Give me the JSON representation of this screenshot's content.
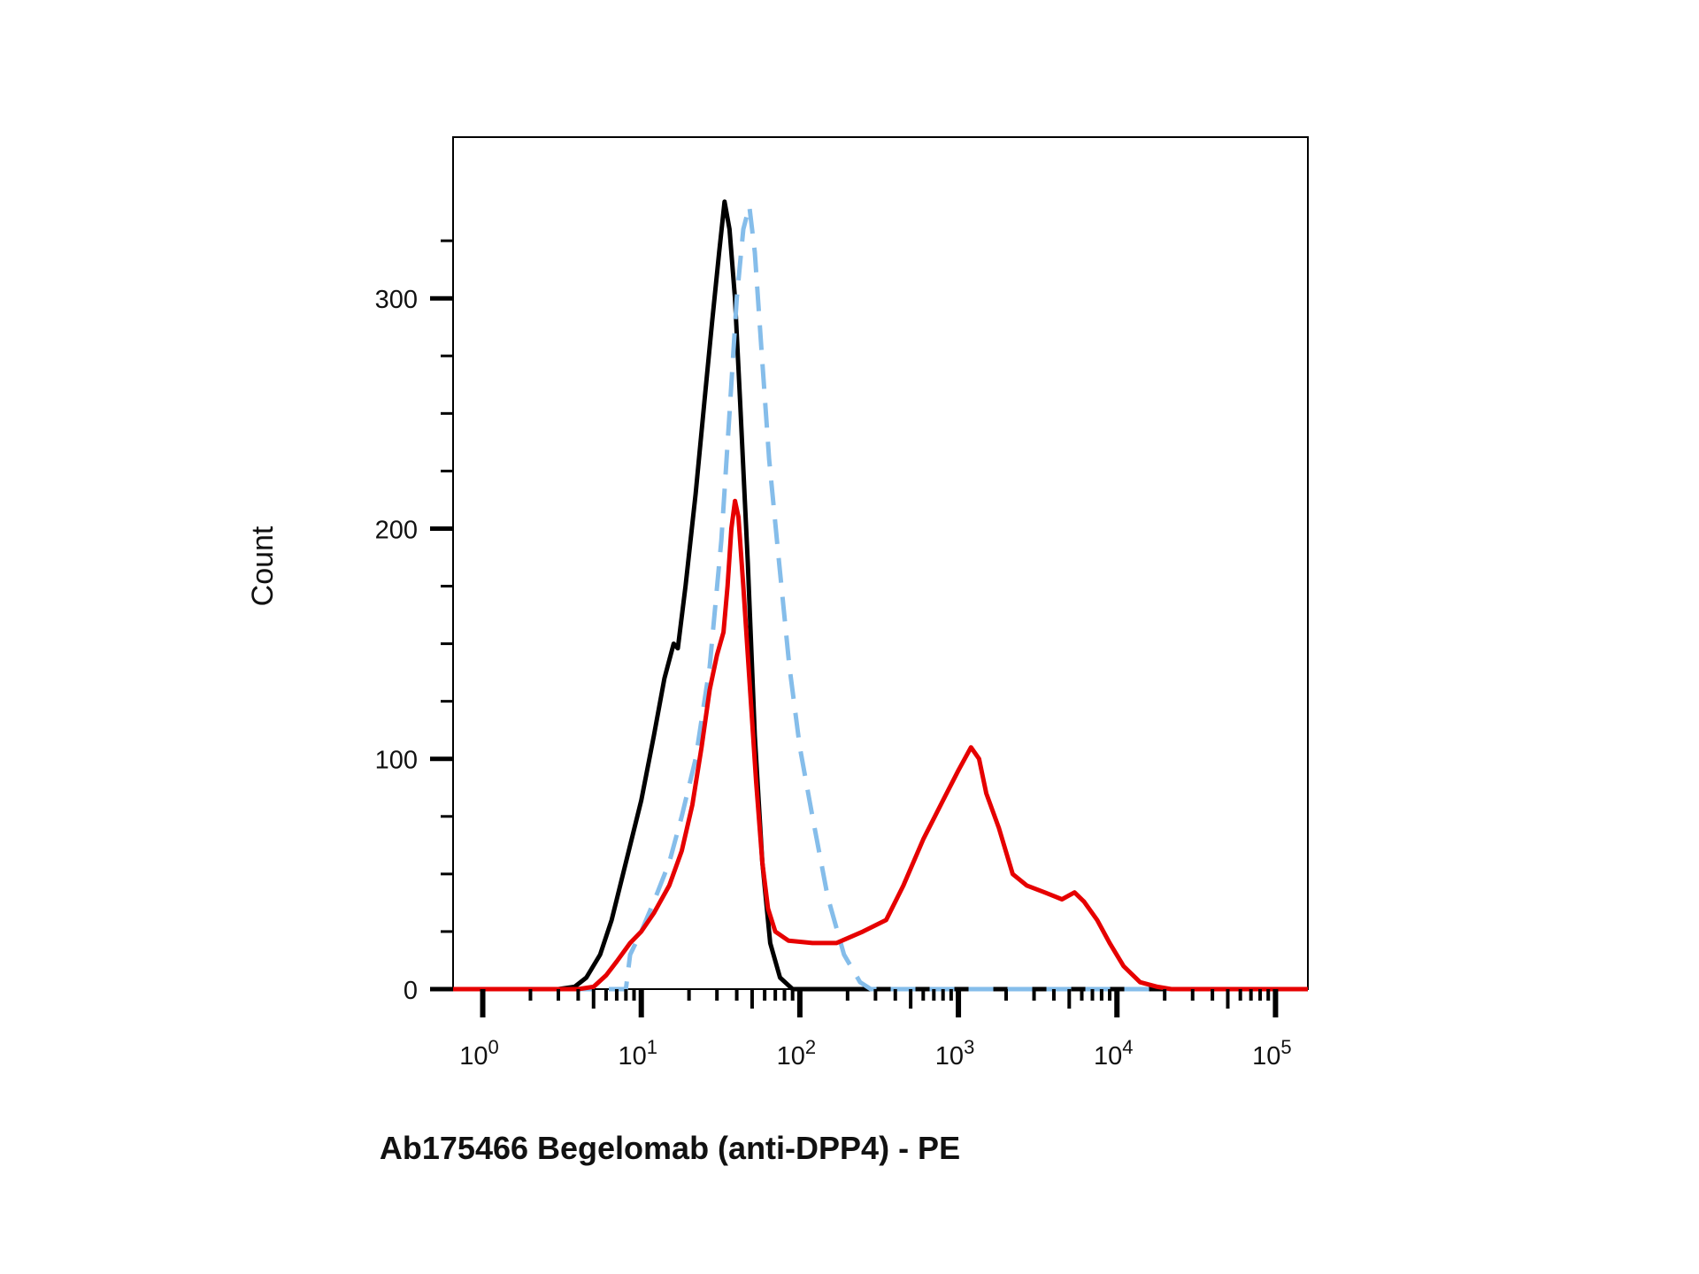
{
  "chart_data": {
    "type": "line",
    "title": "",
    "xlabel": "Ab175466 Begelomab (anti-DPP4) - PE",
    "ylabel": "Count",
    "x_scale": "log",
    "xlim": [
      0.65,
      160000
    ],
    "ylim": [
      0,
      370
    ],
    "grid": false,
    "legend": "none",
    "y_ticks": [
      {
        "value": 0,
        "label": "0"
      },
      {
        "value": 100,
        "label": "100"
      },
      {
        "value": 200,
        "label": "200"
      },
      {
        "value": 300,
        "label": "300"
      }
    ],
    "x_ticks": [
      {
        "value": 1,
        "base": "10",
        "exp": "0"
      },
      {
        "value": 10,
        "base": "10",
        "exp": "1"
      },
      {
        "value": 100,
        "base": "10",
        "exp": "2"
      },
      {
        "value": 1000,
        "base": "10",
        "exp": "3"
      },
      {
        "value": 10000,
        "base": "10",
        "exp": "4"
      },
      {
        "value": 100000,
        "base": "10",
        "exp": "5"
      }
    ],
    "series": [
      {
        "color": "#000000",
        "dashed": false,
        "points": [
          [
            0.65,
            0
          ],
          [
            3,
            0
          ],
          [
            3.8,
            1
          ],
          [
            4.5,
            5
          ],
          [
            5.5,
            15
          ],
          [
            6.5,
            30
          ],
          [
            8,
            55
          ],
          [
            10,
            82
          ],
          [
            12,
            110
          ],
          [
            14,
            135
          ],
          [
            16,
            150
          ],
          [
            17,
            148
          ],
          [
            19,
            175
          ],
          [
            22,
            215
          ],
          [
            25,
            255
          ],
          [
            28,
            290
          ],
          [
            31,
            320
          ],
          [
            33.5,
            342
          ],
          [
            36,
            330
          ],
          [
            39,
            300
          ],
          [
            42,
            255
          ],
          [
            47,
            185
          ],
          [
            52,
            110
          ],
          [
            58,
            55
          ],
          [
            65,
            20
          ],
          [
            75,
            5
          ],
          [
            90,
            0
          ],
          [
            160000,
            0
          ]
        ]
      },
      {
        "color": "#85bdea",
        "dashed": true,
        "points": [
          [
            0.65,
            0
          ],
          [
            8,
            0
          ],
          [
            8.5,
            15
          ],
          [
            10,
            25
          ],
          [
            12,
            38
          ],
          [
            15,
            55
          ],
          [
            18,
            75
          ],
          [
            22,
            100
          ],
          [
            27,
            140
          ],
          [
            32,
            195
          ],
          [
            36,
            250
          ],
          [
            40,
            300
          ],
          [
            44,
            330
          ],
          [
            48,
            340
          ],
          [
            52,
            320
          ],
          [
            57,
            280
          ],
          [
            64,
            230
          ],
          [
            74,
            185
          ],
          [
            86,
            140
          ],
          [
            100,
            105
          ],
          [
            120,
            75
          ],
          [
            150,
            40
          ],
          [
            190,
            15
          ],
          [
            240,
            3
          ],
          [
            280,
            0
          ],
          [
            160000,
            0
          ]
        ]
      },
      {
        "color": "#e60000",
        "dashed": false,
        "points": [
          [
            0.65,
            0
          ],
          [
            4,
            0
          ],
          [
            5,
            1
          ],
          [
            6,
            6
          ],
          [
            7,
            12
          ],
          [
            8.5,
            20
          ],
          [
            10,
            25
          ],
          [
            12,
            33
          ],
          [
            15,
            45
          ],
          [
            18,
            60
          ],
          [
            21,
            80
          ],
          [
            24,
            105
          ],
          [
            27,
            130
          ],
          [
            30,
            145
          ],
          [
            33,
            155
          ],
          [
            35,
            175
          ],
          [
            37,
            200
          ],
          [
            39,
            212
          ],
          [
            41,
            205
          ],
          [
            44,
            175
          ],
          [
            48,
            135
          ],
          [
            53,
            90
          ],
          [
            58,
            55
          ],
          [
            63,
            35
          ],
          [
            70,
            25
          ],
          [
            85,
            21
          ],
          [
            120,
            20
          ],
          [
            170,
            20
          ],
          [
            250,
            25
          ],
          [
            350,
            30
          ],
          [
            450,
            45
          ],
          [
            600,
            65
          ],
          [
            800,
            82
          ],
          [
            1000,
            95
          ],
          [
            1200,
            105
          ],
          [
            1350,
            100
          ],
          [
            1500,
            85
          ],
          [
            1800,
            70
          ],
          [
            2200,
            50
          ],
          [
            2700,
            45
          ],
          [
            3500,
            42
          ],
          [
            4500,
            39
          ],
          [
            5400,
            42
          ],
          [
            6200,
            38
          ],
          [
            7500,
            30
          ],
          [
            9000,
            20
          ],
          [
            11000,
            10
          ],
          [
            14000,
            3
          ],
          [
            18000,
            1
          ],
          [
            22000,
            0
          ],
          [
            160000,
            0
          ]
        ]
      }
    ]
  }
}
